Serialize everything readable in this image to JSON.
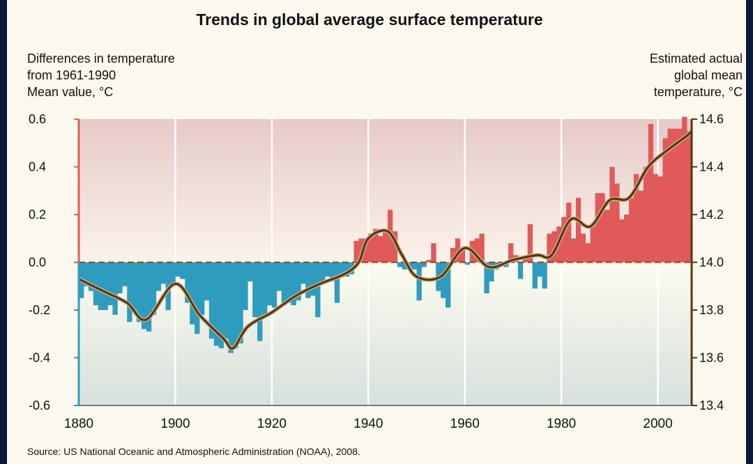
{
  "chart_data": {
    "type": "bar",
    "title": "Trends in global average surface temperature",
    "ylabel_left": [
      "Differences in temperature",
      "from 1961-1990",
      "Mean value, °C"
    ],
    "ylabel_right": [
      "Estimated actual",
      "global mean",
      "temperature, °C"
    ],
    "source": "Source: US National Oceanic and Atmospheric Administration (NOAA), 2008.",
    "xlim": [
      1880,
      2007
    ],
    "ylim": [
      -0.6,
      0.6
    ],
    "ylim_right": [
      13.4,
      14.6
    ],
    "x_ticks": [
      1880,
      1900,
      1920,
      1940,
      1960,
      1980,
      2000
    ],
    "y_ticks": [
      -0.6,
      -0.4,
      -0.2,
      0.0,
      0.2,
      0.4,
      0.6
    ],
    "y_tick_labels": [
      "-0.6",
      "-0.4",
      "-0.2",
      "0.0",
      "0.2",
      "0.4",
      "0.6"
    ],
    "y_ticks_right": [
      13.4,
      13.6,
      13.8,
      14.0,
      14.2,
      14.4,
      14.6
    ],
    "y_tick_labels_right": [
      "13.4",
      "13.6",
      "13.8",
      "14.0",
      "14.2",
      "14.4",
      "14.6"
    ],
    "grid": "vertical",
    "colors": {
      "positive": "#e05a5a",
      "negative": "#2e9cbe",
      "smooth": "#5a3510",
      "zero_line": "#8b4a1a",
      "axis_left_top": "#e05a5a",
      "axis_left_bottom": "#2e9cbe",
      "axis_right": "#5a3510",
      "background_warm": "#ecd6d2",
      "background_cool": "#dbe4e0"
    },
    "series": [
      {
        "name": "annual anomaly",
        "x": [
          1880,
          1881,
          1882,
          1883,
          1884,
          1885,
          1886,
          1887,
          1888,
          1889,
          1890,
          1891,
          1892,
          1893,
          1894,
          1895,
          1896,
          1897,
          1898,
          1899,
          1900,
          1901,
          1902,
          1903,
          1904,
          1905,
          1906,
          1907,
          1908,
          1909,
          1910,
          1911,
          1912,
          1913,
          1914,
          1915,
          1916,
          1917,
          1918,
          1919,
          1920,
          1921,
          1922,
          1923,
          1924,
          1925,
          1926,
          1927,
          1928,
          1929,
          1930,
          1931,
          1932,
          1933,
          1934,
          1935,
          1936,
          1937,
          1938,
          1939,
          1940,
          1941,
          1942,
          1943,
          1944,
          1945,
          1946,
          1947,
          1948,
          1949,
          1950,
          1951,
          1952,
          1953,
          1954,
          1955,
          1956,
          1957,
          1958,
          1959,
          1960,
          1961,
          1962,
          1963,
          1964,
          1965,
          1966,
          1967,
          1968,
          1969,
          1970,
          1971,
          1972,
          1973,
          1974,
          1975,
          1976,
          1977,
          1978,
          1979,
          1980,
          1981,
          1982,
          1983,
          1984,
          1985,
          1986,
          1987,
          1988,
          1989,
          1990,
          1991,
          1992,
          1993,
          1994,
          1995,
          1996,
          1997,
          1998,
          1999,
          2000,
          2001,
          2002,
          2003,
          2004,
          2005,
          2006
        ],
        "values": [
          -0.15,
          -0.1,
          -0.12,
          -0.18,
          -0.2,
          -0.2,
          -0.18,
          -0.22,
          -0.13,
          -0.1,
          -0.25,
          -0.2,
          -0.25,
          -0.28,
          -0.29,
          -0.22,
          -0.12,
          -0.09,
          -0.2,
          -0.1,
          -0.06,
          -0.07,
          -0.17,
          -0.26,
          -0.3,
          -0.22,
          -0.16,
          -0.32,
          -0.35,
          -0.36,
          -0.32,
          -0.38,
          -0.36,
          -0.34,
          -0.2,
          -0.08,
          -0.23,
          -0.33,
          -0.22,
          -0.18,
          -0.19,
          -0.12,
          -0.18,
          -0.17,
          -0.18,
          -0.16,
          -0.09,
          -0.15,
          -0.14,
          -0.23,
          -0.09,
          -0.06,
          -0.08,
          -0.17,
          -0.05,
          -0.06,
          -0.05,
          0.09,
          0.1,
          0.1,
          0.12,
          0.14,
          0.11,
          0.13,
          0.22,
          0.13,
          -0.02,
          -0.03,
          -0.02,
          -0.03,
          -0.16,
          -0.02,
          0.01,
          0.08,
          -0.12,
          -0.15,
          -0.19,
          0.06,
          0.1,
          0.06,
          -0.01,
          0.09,
          0.1,
          0.12,
          -0.13,
          -0.08,
          -0.03,
          -0.01,
          -0.02,
          0.08,
          0.03,
          -0.07,
          0.02,
          0.16,
          -0.11,
          -0.06,
          -0.11,
          0.12,
          0.13,
          0.15,
          0.19,
          0.25,
          0.1,
          0.27,
          0.12,
          0.08,
          0.15,
          0.29,
          0.29,
          0.22,
          0.4,
          0.33,
          0.18,
          0.2,
          0.27,
          0.37,
          0.3,
          0.4,
          0.58,
          0.37,
          0.36,
          0.52,
          0.56,
          0.56,
          0.56,
          0.61,
          0.55
        ]
      },
      {
        "name": "smoothed",
        "x": [
          1880,
          1885,
          1890,
          1894,
          1900,
          1905,
          1910,
          1912,
          1915,
          1920,
          1925,
          1930,
          1935,
          1938,
          1940,
          1944,
          1947,
          1950,
          1955,
          1960,
          1965,
          1970,
          1975,
          1978,
          1982,
          1986,
          1990,
          1994,
          1998,
          2002,
          2006,
          2007
        ],
        "values": [
          -0.07,
          -0.12,
          -0.17,
          -0.24,
          -0.09,
          -0.22,
          -0.32,
          -0.36,
          -0.27,
          -0.21,
          -0.14,
          -0.09,
          -0.05,
          0.0,
          0.1,
          0.13,
          0.03,
          -0.06,
          -0.06,
          0.06,
          -0.02,
          0.01,
          0.03,
          0.03,
          0.18,
          0.15,
          0.26,
          0.27,
          0.4,
          0.47,
          0.53,
          0.55
        ]
      }
    ]
  }
}
